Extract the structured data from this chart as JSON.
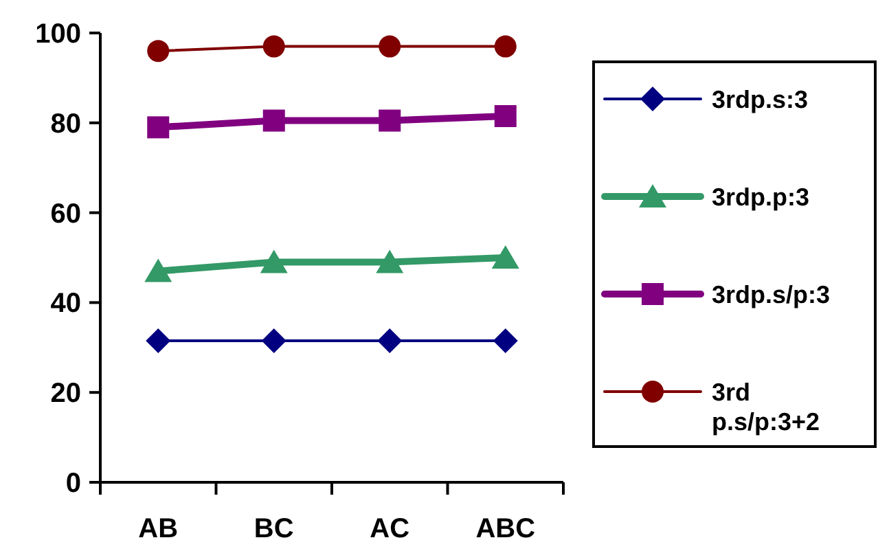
{
  "chart_data": {
    "type": "line",
    "categories": [
      "AB",
      "BC",
      "AC",
      "ABC"
    ],
    "ylim": [
      0,
      100
    ],
    "yticks": [
      0,
      20,
      40,
      60,
      80,
      100
    ],
    "grid": false,
    "legend": "right",
    "series": [
      {
        "name": "3rdp.s:3",
        "color": "#000080",
        "marker": "diamond",
        "values": [
          31.5,
          31.5,
          31.5,
          31.5
        ]
      },
      {
        "name": "3rdp.p:3",
        "color": "#339966",
        "marker": "triangle",
        "values": [
          47,
          49,
          49,
          50
        ]
      },
      {
        "name": "3rdp.s/p:3",
        "color": "#800080",
        "marker": "square",
        "values": [
          79,
          80.5,
          80.5,
          81.5
        ]
      },
      {
        "name": "3rd p.s/p:3+2",
        "color": "#800000",
        "marker": "circle",
        "values": [
          96,
          97,
          97,
          97
        ]
      }
    ]
  }
}
